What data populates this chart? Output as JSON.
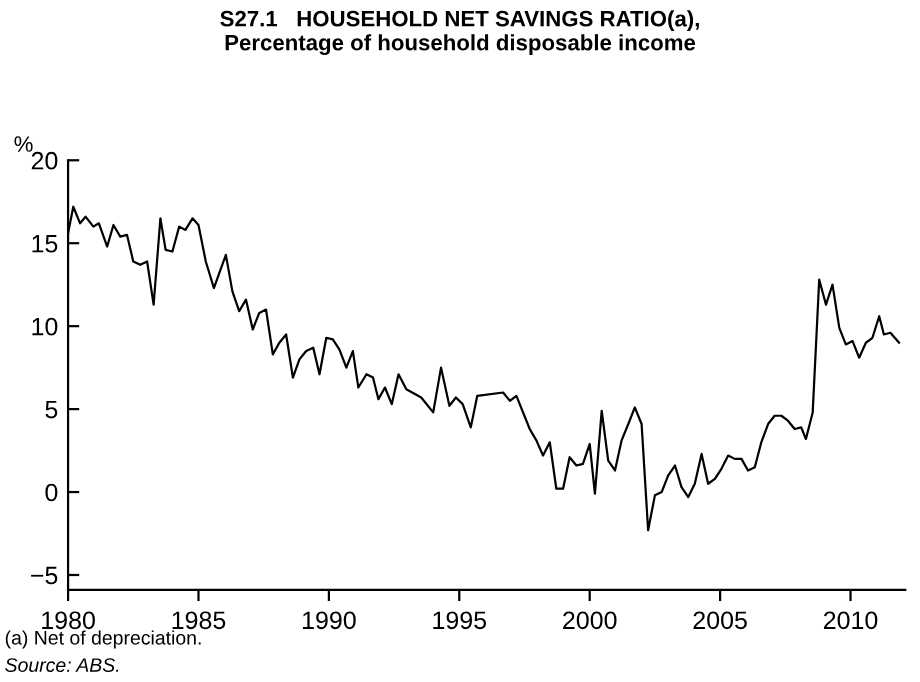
{
  "chart_data": {
    "type": "line",
    "title": "S27.1   HOUSEHOLD NET SAVINGS RATIO(a),\nPercentage of household disposable income",
    "ylabel": "%",
    "annotations": [
      "(a) Net of depreciation.",
      "Source: ABS."
    ],
    "series": [
      {
        "color": "#000000",
        "x": [
          1980.0,
          1980.2,
          1980.46,
          1980.67,
          1980.97,
          1981.18,
          1981.5,
          1981.74,
          1982.0,
          1982.26,
          1982.5,
          1982.77,
          1983.03,
          1983.28,
          1983.54,
          1983.74,
          1984.0,
          1984.26,
          1984.5,
          1984.77,
          1985.0,
          1985.28,
          1985.59,
          1986.05,
          1986.3,
          1986.56,
          1986.82,
          1987.08,
          1987.33,
          1987.59,
          1987.85,
          1988.1,
          1988.36,
          1988.62,
          1988.87,
          1989.13,
          1989.4,
          1989.64,
          1989.9,
          1990.15,
          1990.4,
          1990.67,
          1990.92,
          1991.13,
          1991.44,
          1991.69,
          1991.9,
          1992.15,
          1992.41,
          1992.67,
          1992.97,
          1993.54,
          1994.0,
          1994.3,
          1994.62,
          1994.87,
          1995.13,
          1995.44,
          1995.69,
          1996.68,
          1996.94,
          1997.19,
          1997.7,
          1997.96,
          1998.21,
          1998.47,
          1998.72,
          1998.98,
          1999.23,
          1999.49,
          1999.74,
          2000.0,
          2000.2,
          2000.46,
          2000.71,
          2000.97,
          2001.22,
          2001.48,
          2001.73,
          2001.99,
          2002.24,
          2002.5,
          2002.76,
          2003.01,
          2003.27,
          2003.52,
          2003.78,
          2004.03,
          2004.29,
          2004.54,
          2004.8,
          2005.05,
          2005.31,
          2005.56,
          2005.82,
          2006.07,
          2006.33,
          2006.58,
          2006.84,
          2007.09,
          2007.35,
          2007.6,
          2007.86,
          2008.11,
          2008.29,
          2008.55,
          2008.8,
          2009.06,
          2009.31,
          2009.57,
          2009.82,
          2010.08,
          2010.33,
          2010.59,
          2010.84,
          2011.1,
          2011.28,
          2011.53,
          2011.86
        ],
        "values": [
          15.6,
          17.2,
          16.2,
          16.6,
          16.0,
          16.2,
          14.8,
          16.1,
          15.4,
          15.5,
          13.9,
          13.7,
          13.9,
          11.3,
          16.5,
          14.6,
          14.5,
          16.0,
          15.8,
          16.5,
          16.1,
          13.9,
          12.3,
          14.3,
          12.1,
          10.9,
          11.6,
          9.8,
          10.8,
          11.0,
          8.3,
          9.0,
          9.5,
          6.9,
          8.0,
          8.5,
          8.7,
          7.1,
          9.3,
          9.2,
          8.6,
          7.5,
          8.5,
          6.3,
          7.1,
          6.9,
          5.6,
          6.3,
          5.3,
          7.1,
          6.2,
          5.7,
          4.8,
          7.5,
          5.2,
          5.7,
          5.3,
          3.9,
          5.8,
          6.0,
          5.5,
          5.8,
          3.8,
          3.1,
          2.2,
          3.0,
          0.2,
          0.2,
          2.1,
          1.6,
          1.7,
          2.9,
          -0.1,
          4.9,
          1.9,
          1.3,
          3.1,
          4.1,
          5.1,
          4.1,
          -2.3,
          -0.2,
          0.0,
          1.0,
          1.6,
          0.3,
          -0.3,
          0.5,
          2.3,
          0.5,
          0.8,
          1.4,
          2.2,
          2.0,
          2.0,
          1.3,
          1.5,
          3.0,
          4.1,
          4.6,
          4.6,
          4.3,
          3.8,
          3.9,
          3.2,
          4.8,
          12.8,
          11.3,
          12.5,
          9.9,
          8.9,
          9.1,
          8.1,
          9.0,
          9.3,
          10.6,
          9.5,
          9.6,
          9.0
        ]
      }
    ],
    "xlim": [
      1980,
      2012.1
    ],
    "xticks": [
      1980,
      1985,
      1990,
      1995,
      2000,
      2005,
      2010
    ],
    "ylim": [
      -5.9,
      20
    ],
    "yticks": [
      -5,
      0,
      5,
      10,
      15,
      20
    ],
    "grid": false,
    "legend": false,
    "marker": "none",
    "line_style": "solid"
  }
}
